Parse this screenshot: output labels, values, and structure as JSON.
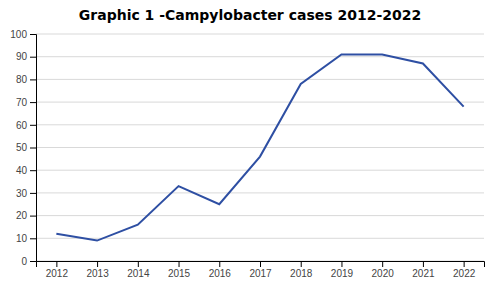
{
  "chart_data": {
    "type": "line",
    "title": "Graphic 1 -Campylobacter cases 2012-2022",
    "x": [
      2012,
      2013,
      2014,
      2015,
      2016,
      2017,
      2018,
      2019,
      2020,
      2021,
      2022
    ],
    "values": [
      12,
      9,
      16,
      33,
      25,
      46,
      78,
      91,
      91,
      87,
      68
    ],
    "color": "#2E4FA3",
    "xlim": [
      2011.5,
      2022.5
    ],
    "xticks": [
      2012,
      2013,
      2014,
      2015,
      2016,
      2017,
      2018,
      2019,
      2020,
      2021,
      2022
    ],
    "ylim": [
      0,
      100
    ],
    "yticks": [
      0,
      10,
      20,
      30,
      40,
      50,
      60,
      70,
      80,
      90,
      100
    ],
    "grid": "y"
  }
}
